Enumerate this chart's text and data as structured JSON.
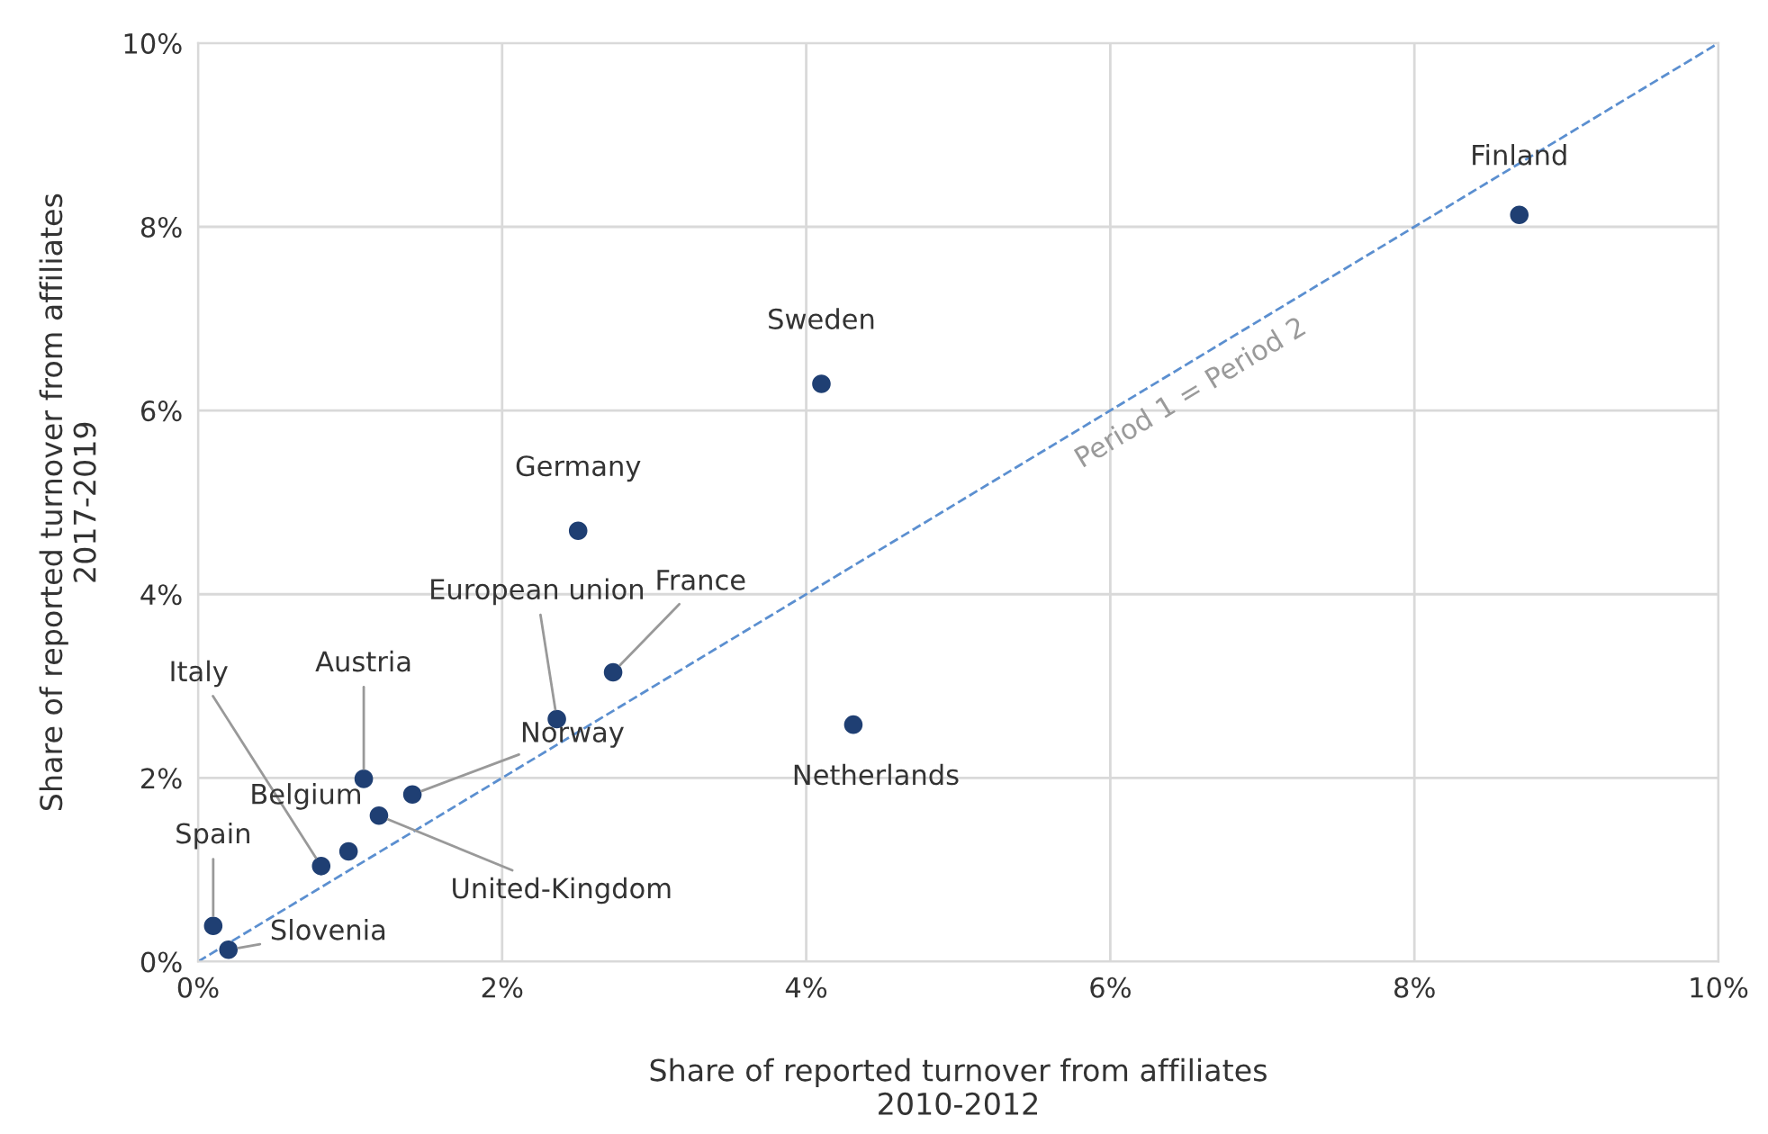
{
  "chart_data": {
    "type": "scatter",
    "xlabel": "Share of reported turnover from affiliates\n2010-2012",
    "ylabel": "Share of reported turnover from affiliates\n2017-2019",
    "xlim": [
      0,
      10
    ],
    "ylim": [
      0,
      10
    ],
    "xticks": [
      {
        "value": 0,
        "label": "0%"
      },
      {
        "value": 2,
        "label": "2%"
      },
      {
        "value": 4,
        "label": "4%"
      },
      {
        "value": 6,
        "label": "6%"
      },
      {
        "value": 8,
        "label": "8%"
      },
      {
        "value": 10,
        "label": "10%"
      }
    ],
    "yticks": [
      {
        "value": 0,
        "label": "0%"
      },
      {
        "value": 2,
        "label": "2%"
      },
      {
        "value": 4,
        "label": "4%"
      },
      {
        "value": 6,
        "label": "6%"
      },
      {
        "value": 8,
        "label": "8%"
      },
      {
        "value": 10,
        "label": "10%"
      }
    ],
    "grid": true,
    "legend": false,
    "series": [
      {
        "marker": "circle",
        "color": "#1f3f73",
        "x": [
          8.69,
          4.1,
          2.5,
          2.73,
          2.36,
          4.31,
          1.41,
          1.09,
          0.81,
          0.99,
          1.19,
          0.1,
          0.2
        ],
        "values": [
          8.13,
          6.29,
          4.69,
          3.15,
          2.64,
          2.58,
          1.82,
          1.99,
          1.04,
          1.2,
          1.59,
          0.39,
          0.13
        ]
      },
      {
        "type": "line",
        "color": "#5b8fd0",
        "line_style": "dashed",
        "x": [
          0,
          10
        ],
        "values": [
          0,
          10
        ]
      }
    ],
    "annotations": [
      {
        "text": "Finland",
        "x": 8.69,
        "y": 8.13
      },
      {
        "text": "Sweden",
        "x": 4.1,
        "y": 6.29
      },
      {
        "text": "Germany",
        "x": 2.5,
        "y": 4.69
      },
      {
        "text": "France",
        "x": 2.73,
        "y": 3.15
      },
      {
        "text": "European union",
        "x": 2.36,
        "y": 2.64
      },
      {
        "text": "Netherlands",
        "x": 4.31,
        "y": 2.58
      },
      {
        "text": "Norway",
        "x": 1.41,
        "y": 1.82
      },
      {
        "text": "Austria",
        "x": 1.09,
        "y": 1.99
      },
      {
        "text": "Italy",
        "x": 0.81,
        "y": 1.04
      },
      {
        "text": "Belgium",
        "x": 0.99,
        "y": 1.2
      },
      {
        "text": "United-Kingdom",
        "x": 1.19,
        "y": 1.59
      },
      {
        "text": "Spain",
        "x": 0.1,
        "y": 0.39
      },
      {
        "text": "Slovenia",
        "x": 0.2,
        "y": 0.13
      },
      {
        "text": "Period 1 = Period 2",
        "x": 6.4,
        "y": 6.4
      }
    ]
  }
}
